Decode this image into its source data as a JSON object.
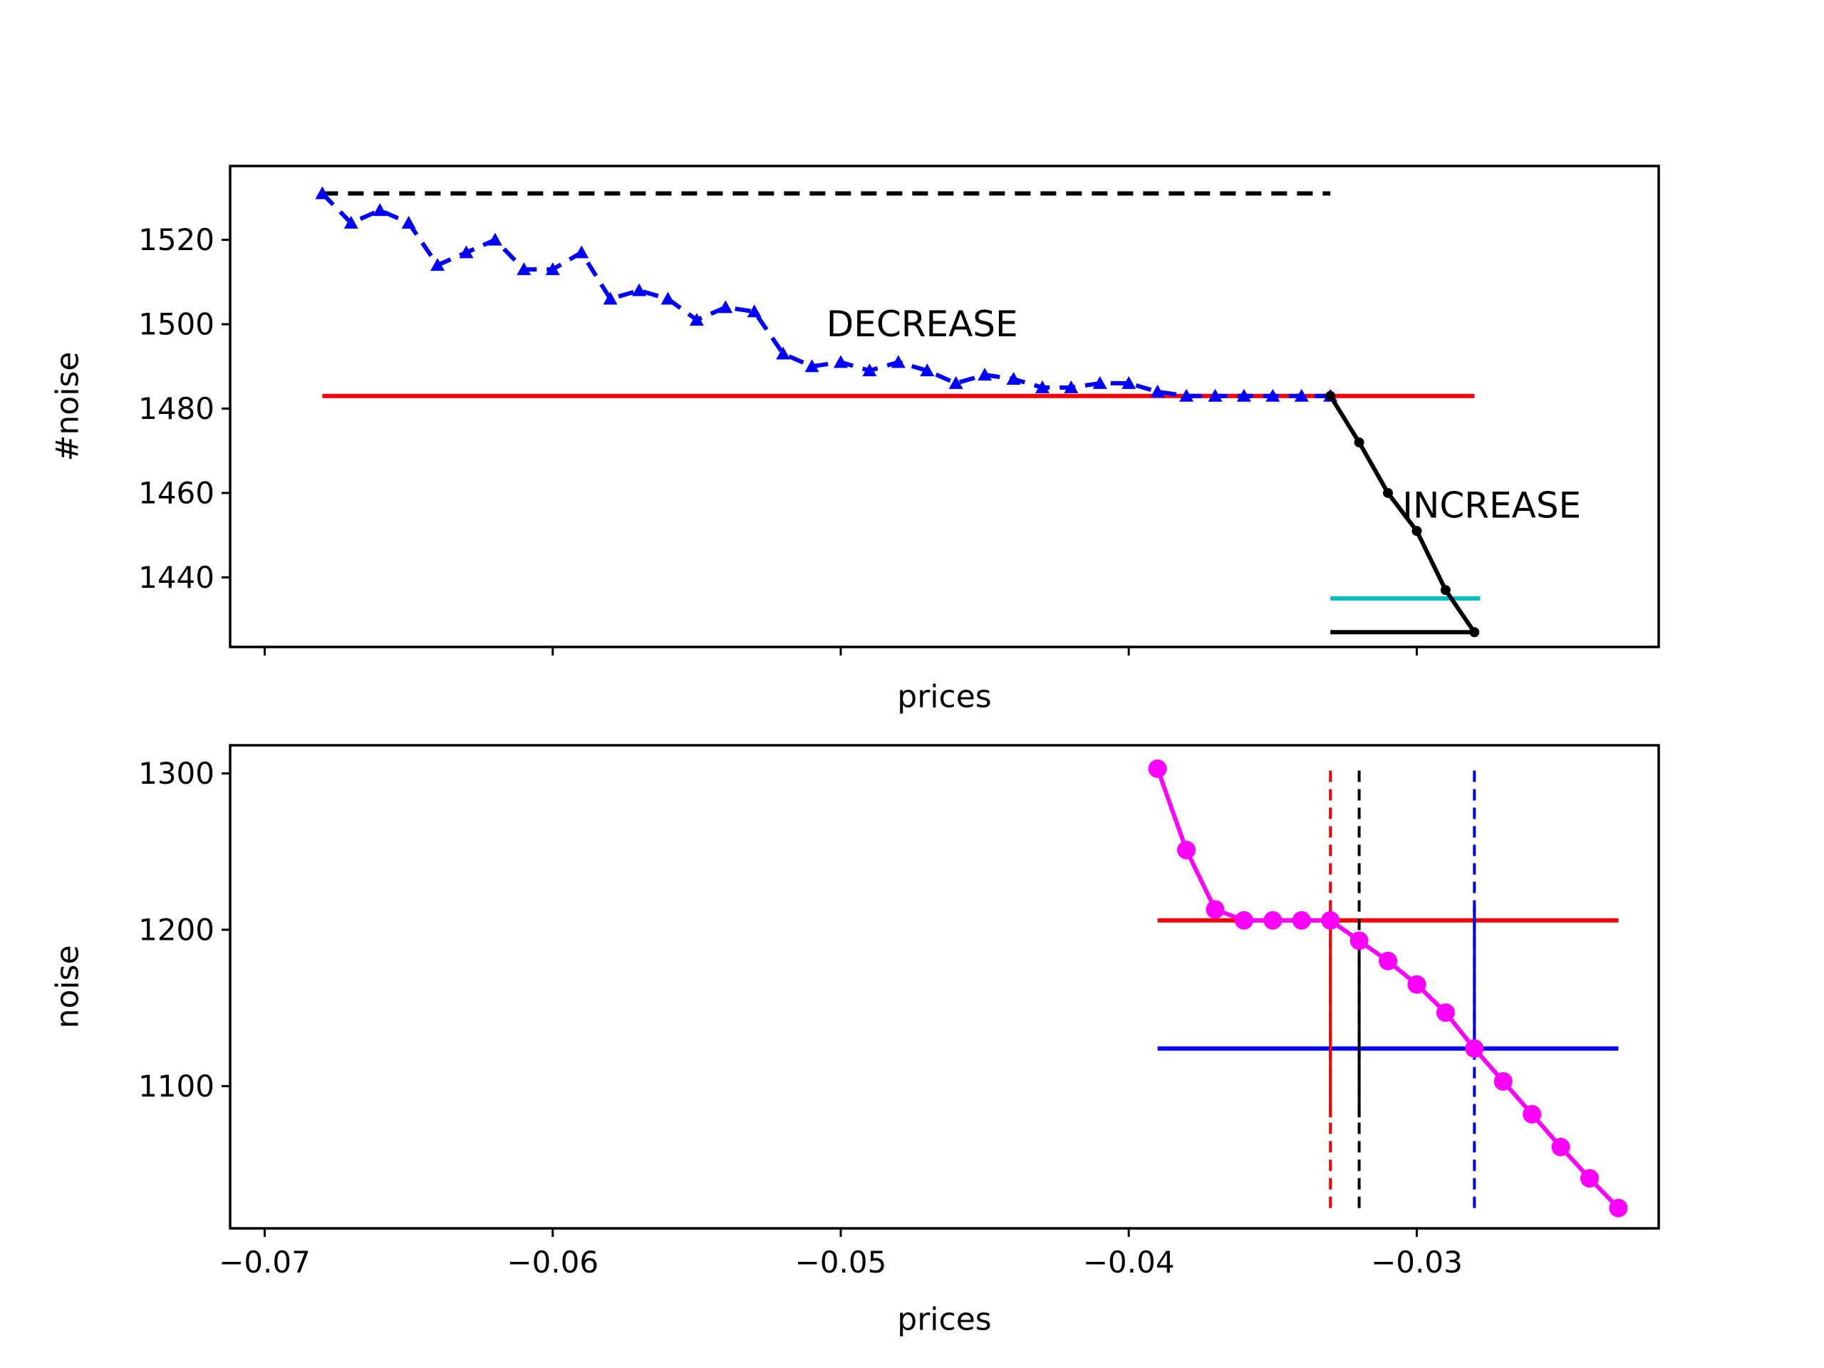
{
  "chart_data": [
    {
      "type": "line",
      "xlabel": "prices",
      "ylabel": "#noise",
      "xlim": [
        -0.0712,
        -0.0216
      ],
      "ylim": [
        1423.5,
        1537.5
      ],
      "xticks": [
        -0.07,
        -0.06,
        -0.05,
        -0.04,
        -0.03
      ],
      "show_xtick_labels": false,
      "yticks": [
        1440,
        1460,
        1480,
        1500,
        1520
      ],
      "ytick_labels": [
        "1440",
        "1460",
        "1480",
        "1500",
        "1520"
      ],
      "grid": false,
      "series": [
        {
          "style": "dashed",
          "color": "#0000ff",
          "marker": "triangle",
          "x": [
            -0.068,
            -0.067,
            -0.066,
            -0.065,
            -0.064,
            -0.063,
            -0.062,
            -0.061,
            -0.06,
            -0.059,
            -0.058,
            -0.057,
            -0.056,
            -0.055,
            -0.054,
            -0.053,
            -0.052,
            -0.051,
            -0.05,
            -0.049,
            -0.048,
            -0.047,
            -0.046,
            -0.045,
            -0.044,
            -0.043,
            -0.042,
            -0.041,
            -0.04,
            -0.039,
            -0.038,
            -0.037,
            -0.036,
            -0.035,
            -0.034,
            -0.033
          ],
          "y": [
            1531,
            1524,
            1527,
            1524,
            1514,
            1517,
            1520,
            1513,
            1513,
            1517,
            1506,
            1508,
            1506,
            1501,
            1504,
            1503,
            1493,
            1490,
            1491,
            1489,
            1491,
            1489,
            1486,
            1488,
            1487,
            1485,
            1485,
            1486,
            1486,
            1484,
            1483,
            1483,
            1483,
            1483,
            1483,
            1483
          ]
        },
        {
          "style": "solid",
          "color": "#000000",
          "marker": "dot",
          "x": [
            -0.033,
            -0.032,
            -0.031,
            -0.03,
            -0.029,
            -0.028
          ],
          "y": [
            1483,
            1472,
            1460,
            1451,
            1437,
            1427
          ]
        }
      ],
      "hlines": [
        {
          "y": 1531,
          "x0": -0.068,
          "x1": -0.033,
          "color": "#000000",
          "style": "dashed"
        },
        {
          "y": 1483,
          "x0": -0.068,
          "x1": -0.028,
          "color": "#ff0000",
          "style": "solid"
        },
        {
          "y": 1435,
          "x0": -0.033,
          "x1": -0.0278,
          "color": "#00bfbf",
          "style": "solid"
        },
        {
          "y": 1427,
          "x0": -0.033,
          "x1": -0.028,
          "color": "#000000",
          "style": "solid"
        }
      ],
      "annotations": [
        {
          "text": "DECREASE",
          "x": -0.0505,
          "y": 1500
        },
        {
          "text": "INCREASE",
          "x": -0.0305,
          "y": 1457
        }
      ]
    },
    {
      "type": "line",
      "xlabel": "prices",
      "ylabel": "noise",
      "xlim": [
        -0.0712,
        -0.0216
      ],
      "ylim": [
        1009,
        1318
      ],
      "xticks": [
        -0.07,
        -0.06,
        -0.05,
        -0.04,
        -0.03
      ],
      "xtick_labels": [
        "−0.07",
        "−0.06",
        "−0.05",
        "−0.04",
        "−0.03"
      ],
      "show_xtick_labels": true,
      "yticks": [
        1100,
        1200,
        1300
      ],
      "ytick_labels": [
        "1100",
        "1200",
        "1300"
      ],
      "grid": false,
      "series": [
        {
          "style": "solid",
          "color": "#ff00ff",
          "marker": "circle",
          "x": [
            -0.039,
            -0.038,
            -0.037,
            -0.036,
            -0.035,
            -0.034,
            -0.033,
            -0.032,
            -0.031,
            -0.03,
            -0.029,
            -0.028,
            -0.027,
            -0.026,
            -0.025,
            -0.024,
            -0.023
          ],
          "y": [
            1303,
            1251,
            1213,
            1206,
            1206,
            1206,
            1206,
            1193,
            1180,
            1165,
            1147,
            1124,
            1103,
            1082,
            1061,
            1041,
            1022
          ]
        }
      ],
      "hlines": [
        {
          "y": 1206,
          "x0": -0.039,
          "x1": -0.023,
          "color": "#ff0000",
          "style": "solid"
        },
        {
          "y": 1124,
          "x0": -0.039,
          "x1": -0.023,
          "color": "#0000ff",
          "style": "solid"
        }
      ],
      "vlines": [
        {
          "x": -0.033,
          "y0": 1080,
          "y1": 1206,
          "color": "#ff0000",
          "style": "solid"
        },
        {
          "x": -0.033,
          "y0": 1022,
          "y1": 1303,
          "color": "#ff0000",
          "style": "dashed"
        },
        {
          "x": -0.032,
          "y0": 1080,
          "y1": 1193,
          "color": "#000000",
          "style": "solid"
        },
        {
          "x": -0.032,
          "y0": 1022,
          "y1": 1303,
          "color": "#000000",
          "style": "dashed"
        },
        {
          "x": -0.028,
          "y0": 1124,
          "y1": 1215,
          "color": "#0000ff",
          "style": "solid"
        },
        {
          "x": -0.028,
          "y0": 1022,
          "y1": 1303,
          "color": "#0000ff",
          "style": "dashed"
        }
      ]
    }
  ]
}
